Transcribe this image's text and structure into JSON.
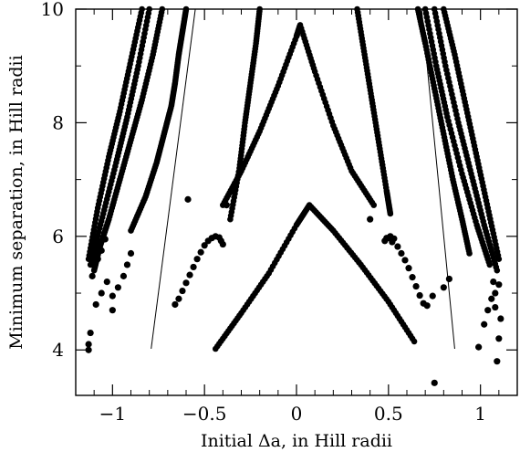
{
  "chart_data": {
    "type": "scatter",
    "title": "",
    "xlabel": "Initial Δa, in Hill radii",
    "ylabel": "Minimum separation, in Hill radii",
    "xlim": [
      -1.2,
      1.2
    ],
    "ylim": [
      3.2,
      10
    ],
    "xticks": [
      -1,
      -0.5,
      0,
      0.5,
      1
    ],
    "xtick_labels": [
      "−1",
      "−0.5",
      "0",
      "0.5",
      "1"
    ],
    "yticks": [
      4,
      6,
      8,
      10
    ],
    "ytick_labels": [
      "4",
      "6",
      "8",
      "10"
    ],
    "grid": false,
    "legend": "none",
    "marker_color": "#000000",
    "series": [
      {
        "kind": "points",
        "points": [
          [
            -0.48,
            5.92
          ],
          [
            -0.46,
            5.97
          ],
          [
            -0.44,
            6.0
          ],
          [
            -0.42,
            5.98
          ],
          [
            -0.41,
            5.92
          ],
          [
            -0.4,
            5.86
          ],
          [
            -0.5,
            5.84
          ],
          [
            -0.52,
            5.72
          ],
          [
            -0.54,
            5.6
          ],
          [
            -0.56,
            5.46
          ],
          [
            -0.58,
            5.32
          ],
          [
            -0.6,
            5.18
          ],
          [
            -0.62,
            5.04
          ],
          [
            -0.64,
            4.9
          ],
          [
            -0.66,
            4.8
          ],
          [
            0.48,
            5.92
          ],
          [
            0.5,
            5.97
          ],
          [
            0.51,
            6.0
          ],
          [
            0.53,
            5.96
          ],
          [
            0.52,
            5.9
          ],
          [
            0.55,
            5.82
          ],
          [
            0.57,
            5.7
          ],
          [
            0.59,
            5.58
          ],
          [
            0.61,
            5.44
          ],
          [
            0.63,
            5.28
          ],
          [
            0.65,
            5.12
          ],
          [
            0.67,
            4.96
          ],
          [
            0.69,
            4.82
          ],
          [
            0.71,
            4.78
          ],
          [
            -0.59,
            6.65
          ],
          [
            -0.38,
            6.55
          ],
          [
            0.4,
            6.3
          ],
          [
            0.49,
            5.97
          ],
          [
            0.74,
            4.95
          ],
          [
            0.75,
            3.42
          ],
          [
            0.8,
            5.1
          ],
          [
            0.83,
            5.25
          ],
          [
            0.99,
            4.05
          ],
          [
            1.02,
            4.45
          ],
          [
            1.04,
            4.7
          ],
          [
            1.06,
            4.9
          ],
          [
            1.08,
            5.0
          ],
          [
            1.1,
            5.15
          ],
          [
            1.09,
            3.8
          ],
          [
            1.1,
            4.2
          ],
          [
            1.11,
            4.55
          ],
          [
            1.08,
            4.75
          ],
          [
            1.07,
            5.2
          ],
          [
            -1.13,
            4.0
          ],
          [
            -1.13,
            4.1
          ],
          [
            -1.12,
            4.3
          ],
          [
            -1.09,
            4.8
          ],
          [
            -1.06,
            5.0
          ],
          [
            -1.03,
            5.2
          ],
          [
            -1.0,
            4.7
          ],
          [
            -1.0,
            4.95
          ],
          [
            -0.97,
            5.1
          ],
          [
            -0.94,
            5.3
          ],
          [
            -0.92,
            5.5
          ],
          [
            -0.9,
            5.7
          ],
          [
            -1.11,
            5.3
          ],
          [
            -1.1,
            5.5
          ],
          [
            -1.08,
            5.6
          ],
          [
            -1.06,
            5.75
          ],
          [
            -1.04,
            5.95
          ]
        ]
      },
      {
        "kind": "band",
        "x": [
          -0.44,
          -0.3,
          -0.15,
          0.0,
          0.07,
          0.2,
          0.35,
          0.5,
          0.64
        ],
        "y": [
          4.02,
          4.65,
          5.35,
          6.2,
          6.55,
          6.1,
          5.5,
          4.85,
          4.15
        ]
      },
      {
        "kind": "band",
        "x": [
          -0.4,
          -0.3,
          -0.2,
          -0.1,
          0.0,
          0.02,
          0.1,
          0.2,
          0.3,
          0.42
        ],
        "y": [
          6.55,
          7.15,
          7.85,
          8.65,
          9.52,
          9.72,
          8.9,
          7.95,
          7.15,
          6.55
        ]
      },
      {
        "kind": "band",
        "x": [
          -0.36,
          -0.31,
          -0.28,
          -0.25,
          -0.22,
          -0.2
        ],
        "y": [
          6.3,
          7.2,
          8.0,
          8.7,
          9.4,
          10.0
        ]
      },
      {
        "kind": "band",
        "x": [
          0.33,
          0.37,
          0.41,
          0.45,
          0.49,
          0.51
        ],
        "y": [
          10.0,
          9.2,
          8.4,
          7.6,
          6.8,
          6.4
        ]
      },
      {
        "kind": "band",
        "x": [
          -0.6,
          -0.62,
          -0.64,
          -0.66,
          -0.68,
          -0.72,
          -0.76,
          -0.82,
          -0.9
        ],
        "y": [
          10.0,
          9.6,
          9.2,
          8.7,
          8.3,
          7.8,
          7.3,
          6.7,
          6.1
        ]
      },
      {
        "kind": "band",
        "x": [
          -0.73,
          -0.78,
          -0.84,
          -0.9,
          -0.96,
          -1.02,
          -1.07,
          -1.1
        ],
        "y": [
          10.0,
          9.2,
          8.4,
          7.7,
          7.0,
          6.3,
          5.8,
          5.4
        ]
      },
      {
        "kind": "band",
        "x": [
          -0.8,
          -0.86,
          -0.92,
          -0.98,
          -1.05,
          -1.12
        ],
        "y": [
          10.0,
          9.0,
          8.1,
          7.3,
          6.4,
          5.5
        ]
      },
      {
        "kind": "band",
        "x": [
          -0.84,
          -0.9,
          -0.96,
          -1.02,
          -1.08,
          -1.13
        ],
        "y": [
          10.0,
          9.1,
          8.2,
          7.4,
          6.5,
          5.6
        ]
      },
      {
        "kind": "band",
        "x": [
          0.66,
          0.7,
          0.75,
          0.8,
          0.85,
          0.9,
          0.94
        ],
        "y": [
          10.0,
          9.4,
          8.6,
          7.8,
          7.0,
          6.3,
          5.7
        ]
      },
      {
        "kind": "band",
        "x": [
          0.7,
          0.76,
          0.82,
          0.9,
          0.98,
          1.05
        ],
        "y": [
          10.0,
          9.0,
          8.1,
          7.1,
          6.2,
          5.5
        ]
      },
      {
        "kind": "band",
        "x": [
          0.75,
          0.81,
          0.88,
          0.95,
          1.02,
          1.09
        ],
        "y": [
          10.0,
          9.0,
          8.0,
          7.1,
          6.2,
          5.4
        ]
      },
      {
        "kind": "band",
        "x": [
          0.8,
          0.86,
          0.92,
          0.98,
          1.04,
          1.1
        ],
        "y": [
          10.0,
          9.2,
          8.3,
          7.4,
          6.5,
          5.6
        ]
      },
      {
        "kind": "line",
        "x": [
          -0.79,
          -0.55
        ],
        "y": [
          4.02,
          10.0
        ]
      },
      {
        "kind": "line",
        "x": [
          0.86,
          0.68
        ],
        "y": [
          4.02,
          10.0
        ]
      }
    ]
  }
}
